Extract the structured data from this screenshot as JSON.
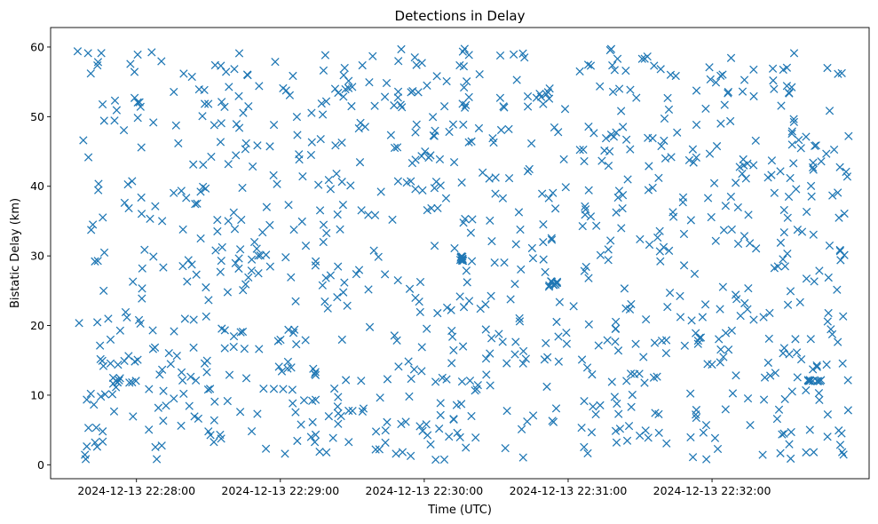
{
  "chart_data": {
    "type": "scatter",
    "title": "Detections in Delay",
    "xlabel": "Time (UTC)",
    "ylabel": "Bistatic Delay (km)",
    "marker": "x",
    "color": "#1f77b4",
    "grid": false,
    "x_axis": "time (seconds relative to 2024-12-13 22:28:00)",
    "x_range_seconds": [
      -35.8,
      305.5
    ],
    "xlim_labels": [
      "2024-12-13 22:27:24",
      "2024-12-13 22:33:05"
    ],
    "ylim": [
      -2.0,
      62.8
    ],
    "x_tick_labels": [
      "2024-12-13 22:28:00",
      "2024-12-13 22:29:00",
      "2024-12-13 22:30:00",
      "2024-12-13 22:31:00",
      "2024-12-13 22:32:00"
    ],
    "x_tick_seconds": [
      0,
      60,
      120,
      180,
      240
    ],
    "y_ticks": [
      0,
      10,
      20,
      30,
      40,
      50,
      60
    ],
    "scatter_seed": 20241213,
    "points_sampled": 980,
    "dense_clusters": [
      {
        "x_range_seconds": [
          -10,
          0
        ],
        "y_range": [
          11.5,
          12.5
        ]
      },
      {
        "x_range_seconds": [
          172,
          176
        ],
        "y_range": [
          25.5,
          26.5
        ]
      },
      {
        "x_range_seconds": [
          276,
          286
        ],
        "y_range": [
          12.0,
          12.2
        ]
      },
      {
        "x_range_seconds": [
          135,
          137
        ],
        "y_range": [
          29.0,
          30.0
        ]
      }
    ]
  }
}
